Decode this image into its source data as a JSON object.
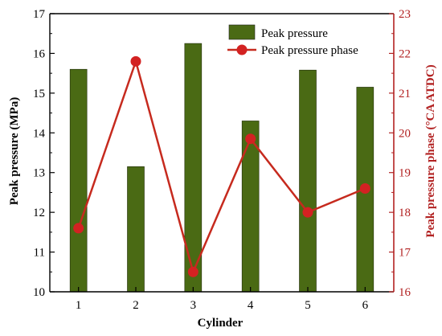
{
  "chart_data": {
    "type": "bar+line",
    "categories": [
      "1",
      "2",
      "3",
      "4",
      "5",
      "6"
    ],
    "xlabel": "Cylinder",
    "ylabel_left": "Peak pressure (MPa)",
    "ylabel_right": "Peak pressure phase (°CA ATDC)",
    "ylim_left": [
      10,
      17
    ],
    "yticks_left": [
      "10",
      "11",
      "12",
      "13",
      "14",
      "15",
      "16",
      "17"
    ],
    "ylim_right": [
      16,
      23
    ],
    "yticks_right": [
      "16",
      "17",
      "18",
      "19",
      "20",
      "21",
      "22",
      "23"
    ],
    "series": [
      {
        "name": "Peak pressure",
        "type": "bar",
        "axis": "left",
        "color": "#4a6a14",
        "values": [
          15.6,
          13.15,
          16.25,
          14.3,
          15.58,
          15.15
        ]
      },
      {
        "name": "Peak pressure phase",
        "type": "line",
        "axis": "right",
        "color": "#d32222",
        "values": [
          17.6,
          21.8,
          16.5,
          19.85,
          18.0,
          18.6
        ]
      }
    ],
    "legend": "top-right",
    "grid": false
  }
}
